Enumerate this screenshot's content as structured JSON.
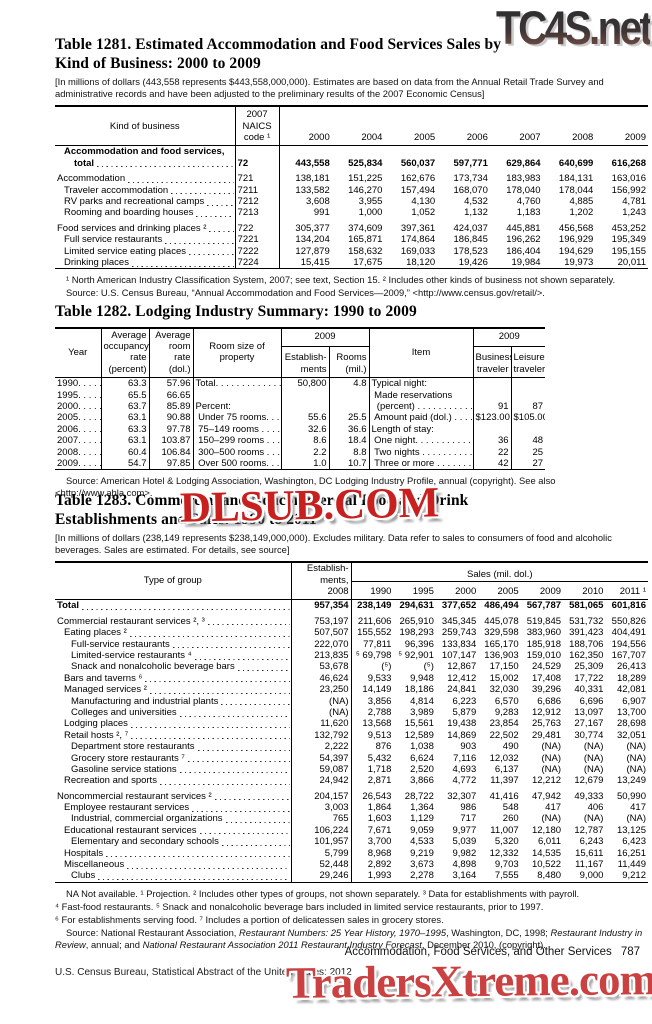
{
  "watermarks": {
    "top": "TC4S.net",
    "middle": "DLSUB.COM",
    "bottom": "TradersXtreme.com"
  },
  "footer": {
    "running_head": "Accommodation, Food Services, and Other Services",
    "page_number": "787",
    "credit": "U.S. Census Bureau, Statistical Abstract of the United States: 2012"
  },
  "t1281": {
    "title1": "Table 1281. Estimated Accommodation and Food Services Sales by",
    "title2": "Kind of Business: 2000 to 2009",
    "note": "[In millions of dollars (443,558 represents $443,558,000,000). Estimates are based on data from the Annual Retail Trade Survey and administrative records and have been adjusted to the preliminary results of the 2007 Economic Census]",
    "header": {
      "kind": "Kind of business",
      "naics": "2007\nNAICS\ncode ¹",
      "years": [
        "2000",
        "2004",
        "2005",
        "2006",
        "2007",
        "2008",
        "2009"
      ]
    },
    "rows": [
      {
        "label": "Accommodation and food services,",
        "label2": "total",
        "naics": "72",
        "bold": true,
        "indent": 1,
        "values": [
          "443,558",
          "525,834",
          "560,037",
          "597,771",
          "629,864",
          "640,699",
          "616,268"
        ]
      },
      {
        "label": "Accommodation",
        "naics": "721",
        "indent": 0,
        "gap": true,
        "values": [
          "138,181",
          "151,225",
          "162,676",
          "173,734",
          "183,983",
          "184,131",
          "163,016"
        ]
      },
      {
        "label": "Traveler accommodation",
        "naics": "7211",
        "indent": 1,
        "values": [
          "133,582",
          "146,270",
          "157,494",
          "168,070",
          "178,040",
          "178,044",
          "156,992"
        ]
      },
      {
        "label": "RV parks and recreational camps",
        "naics": "7212",
        "indent": 1,
        "values": [
          "3,608",
          "3,955",
          "4,130",
          "4,532",
          "4,760",
          "4,885",
          "4,781"
        ]
      },
      {
        "label": "Rooming and boarding houses",
        "naics": "7213",
        "indent": 1,
        "values": [
          "991",
          "1,000",
          "1,052",
          "1,132",
          "1,183",
          "1,202",
          "1,243"
        ]
      },
      {
        "label": "Food services and drinking places ²",
        "naics": "722",
        "indent": 0,
        "gap": true,
        "values": [
          "305,377",
          "374,609",
          "397,361",
          "424,037",
          "445,881",
          "456,568",
          "453,252"
        ]
      },
      {
        "label": "Full service restaurants",
        "naics": "7221",
        "indent": 1,
        "values": [
          "134,204",
          "165,871",
          "174,864",
          "186,845",
          "196,262",
          "196,929",
          "195,349"
        ]
      },
      {
        "label": "Limited service eating places",
        "naics": "7222",
        "indent": 1,
        "values": [
          "127,879",
          "158,632",
          "169,033",
          "178,523",
          "186,404",
          "194,629",
          "195,155"
        ]
      },
      {
        "label": "Drinking places",
        "naics": "7224",
        "indent": 1,
        "values": [
          "15,415",
          "17,675",
          "18,120",
          "19,426",
          "19,984",
          "19,973",
          "20,011"
        ]
      }
    ],
    "footnote": "¹ North American Industry Classification System, 2007; see text, Section 15. ² Includes other kinds of business not shown separately.",
    "source": "Source: U.S. Census Bureau, “Annual Accommodation and Food Services—2009,” <http://www.census.gov/retail/>."
  },
  "t1282": {
    "title": "Table 1282. Lodging Industry Summary: 1990 to 2009",
    "header": {
      "year": "Year",
      "occupancy": "Average\noccupancy\nrate\n(percent)",
      "rate": "Average\nroom rate\n(dol.)",
      "size": "Room size of\nproperty",
      "span_left": "2009",
      "estab": "Establish-\nments",
      "rooms": "Rooms\n(mil.)",
      "item": "Item",
      "span_right": "2009",
      "business": "Business\ntraveler",
      "leisure": "Leisure\ntraveler"
    },
    "rows": [
      [
        "1990. . . . .",
        "63.3",
        "57.96",
        "Total. . . . . . . . . . . . . .",
        "50,800",
        "4.8",
        "Typical night:",
        "",
        ""
      ],
      [
        "1995. . . . .",
        "65.5",
        "66.65",
        "",
        "",
        "",
        " Made reservations",
        "",
        ""
      ],
      [
        "2000. . . . .",
        "63.7",
        "85.89",
        "Percent:",
        "",
        "",
        "  (percent) . . . . . . . . . . .",
        "91",
        "87"
      ],
      [
        "2005. . . . .",
        "63.1",
        "90.88",
        " Under 75 rooms. . .",
        "55.6",
        "25.5",
        " Amount paid (dol.) . . . . .",
        "$123.00",
        "$105.00"
      ],
      [
        "2006. . . . .",
        "63.3",
        "97.78",
        " 75–149 rooms . . . .",
        "32.6",
        "36.6",
        "Length of stay:",
        "",
        ""
      ],
      [
        "2007. . . . .",
        "63.1",
        "103.87",
        " 150–299 rooms . . .",
        "8.6",
        "18.4",
        " One night. . . . . . . . . . .",
        "36",
        "48"
      ],
      [
        "2008. . . . .",
        "60.4",
        "106.84",
        " 300–500 rooms . . .",
        "2.2",
        "8.8",
        " Two nights . . . . . . . . . .",
        "22",
        "25"
      ],
      [
        "2009. . . . .",
        "54.7",
        "97.85",
        " Over 500 rooms. . .",
        "1.0",
        "10.7",
        " Three or more . . . . . . . .",
        "42",
        "27"
      ]
    ],
    "source": "Source: American Hotel & Lodging Association, Washington, DC Lodging Industry Profile, annual (copyright). See also <http://www.ahla.com>."
  },
  "t1283": {
    "title1": "Table 1283. Commercial and Noncommercial Food and Drink",
    "title2": "Establishments and Sales: 1990 to 2011",
    "note": "[In millions of dollars (238,149 represents $238,149,000,000). Excludes military. Data refer to sales to consumers of food and alcoholic beverages. Sales are estimated. For details, see source]",
    "header": {
      "type": "Type of group",
      "estab": "Establish-\nments,\n2008",
      "sales_span": "Sales (mil. dol.)",
      "years": [
        "1990",
        "1995",
        "2000",
        "2005",
        "2009",
        "2010",
        "2011 ¹"
      ]
    },
    "rows": [
      {
        "label": "Total",
        "estab": "957,354",
        "bold": true,
        "indent": 0,
        "values": [
          "238,149",
          "294,631",
          "377,652",
          "486,494",
          "567,787",
          "581,065",
          "601,816"
        ]
      },
      {
        "label": "Commercial restaurant services ², ³",
        "estab": "753,197",
        "indent": 0,
        "gap": true,
        "values": [
          "211,606",
          "265,910",
          "345,345",
          "445,078",
          "519,845",
          "531,732",
          "550,826"
        ]
      },
      {
        "label": "Eating places ²",
        "estab": "507,507",
        "indent": 1,
        "values": [
          "155,552",
          "198,293",
          "259,743",
          "329,598",
          "383,960",
          "391,423",
          "404,491"
        ]
      },
      {
        "label": "Full-service restaurants",
        "estab": "222,070",
        "indent": 2,
        "values": [
          "77,811",
          "96,396",
          "133,834",
          "165,170",
          "185,918",
          "188,706",
          "194,556"
        ]
      },
      {
        "label": "Limited-service restaurants ⁴",
        "estab": "213,835",
        "indent": 2,
        "values": [
          "⁵ 69,798",
          "⁵ 92,901",
          "107,147",
          "136,903",
          "159,010",
          "162,350",
          "167,707"
        ]
      },
      {
        "label": "Snack and nonalcoholic beverage bars",
        "estab": "53,678",
        "indent": 2,
        "values": [
          "(⁵)",
          "(⁵)",
          "12,867",
          "17,150",
          "24,529",
          "25,309",
          "26,413"
        ]
      },
      {
        "label": "Bars and taverns ⁶",
        "estab": "46,624",
        "indent": 1,
        "values": [
          "9,533",
          "9,948",
          "12,412",
          "15,002",
          "17,408",
          "17,722",
          "18,289"
        ]
      },
      {
        "label": "Managed services ²",
        "estab": "23,250",
        "indent": 1,
        "values": [
          "14,149",
          "18,186",
          "24,841",
          "32,030",
          "39,296",
          "40,331",
          "42,081"
        ]
      },
      {
        "label": "Manufacturing and industrial plants",
        "estab": "(NA)",
        "indent": 2,
        "values": [
          "3,856",
          "4,814",
          "6,223",
          "6,570",
          "6,686",
          "6,696",
          "6,907"
        ]
      },
      {
        "label": "Colleges and universities",
        "estab": "(NA)",
        "indent": 2,
        "values": [
          "2,788",
          "3,989",
          "5,879",
          "9,283",
          "12,912",
          "13,097",
          "13,700"
        ]
      },
      {
        "label": "Lodging places",
        "estab": "11,620",
        "indent": 1,
        "values": [
          "13,568",
          "15,561",
          "19,438",
          "23,854",
          "25,763",
          "27,167",
          "28,698"
        ]
      },
      {
        "label": "Retail hosts ², ⁷",
        "estab": "132,792",
        "indent": 1,
        "values": [
          "9,513",
          "12,589",
          "14,869",
          "22,502",
          "29,481",
          "30,774",
          "32,051"
        ]
      },
      {
        "label": "Department store restaurants",
        "estab": "2,222",
        "indent": 2,
        "values": [
          "876",
          "1,038",
          "903",
          "490",
          "(NA)",
          "(NA)",
          "(NA)"
        ]
      },
      {
        "label": "Grocery store restaurants ⁷",
        "estab": "54,397",
        "indent": 2,
        "values": [
          "5,432",
          "6,624",
          "7,116",
          "12,032",
          "(NA)",
          "(NA)",
          "(NA)"
        ]
      },
      {
        "label": "Gasoline service stations",
        "estab": "59,087",
        "indent": 2,
        "values": [
          "1,718",
          "2,520",
          "4,693",
          "6,137",
          "(NA)",
          "(NA)",
          "(NA)"
        ]
      },
      {
        "label": "Recreation and sports",
        "estab": "24,942",
        "indent": 1,
        "values": [
          "2,871",
          "3,866",
          "4,772",
          "11,397",
          "12,212",
          "12,679",
          "13,249"
        ]
      },
      {
        "label": "Noncommercial restaurant services ²",
        "estab": "204,157",
        "indent": 0,
        "gap": true,
        "values": [
          "26,543",
          "28,722",
          "32,307",
          "41,416",
          "47,942",
          "49,333",
          "50,990"
        ]
      },
      {
        "label": "Employee restaurant services",
        "estab": "3,003",
        "indent": 1,
        "values": [
          "1,864",
          "1,364",
          "986",
          "548",
          "417",
          "406",
          "417"
        ]
      },
      {
        "label": "Industrial, commercial organizations",
        "estab": "765",
        "indent": 2,
        "values": [
          "1,603",
          "1,129",
          "717",
          "260",
          "(NA)",
          "(NA)",
          "(NA)"
        ]
      },
      {
        "label": "Educational restaurant services",
        "estab": "106,224",
        "indent": 1,
        "values": [
          "7,671",
          "9,059",
          "9,977",
          "11,007",
          "12,180",
          "12,787",
          "13,125"
        ]
      },
      {
        "label": "Elementary and secondary schools",
        "estab": "101,957",
        "indent": 2,
        "values": [
          "3,700",
          "4,533",
          "5,039",
          "5,320",
          "6,011",
          "6,243",
          "6,423"
        ]
      },
      {
        "label": "Hospitals",
        "estab": "5,799",
        "indent": 1,
        "values": [
          "8,968",
          "9,219",
          "9,982",
          "12,332",
          "14,535",
          "15,611",
          "16,251"
        ]
      },
      {
        "label": "Miscellaneous",
        "estab": "52,448",
        "indent": 1,
        "values": [
          "2,892",
          "3,673",
          "4,898",
          "9,703",
          "10,522",
          "11,167",
          "11,449"
        ]
      },
      {
        "label": "Clubs",
        "estab": "29,246",
        "indent": 2,
        "values": [
          "1,993",
          "2,278",
          "3,164",
          "7,555",
          "8,480",
          "9,000",
          "9,212"
        ]
      }
    ],
    "footnotes": [
      "NA Not available. ¹ Projection. ² Includes other types of groups, not shown separately. ³ Data for establishments with payroll.",
      "⁴ Fast-food restaurants. ⁵ Snack and nonalcoholic beverage bars included in limited service restaurants, prior to 1997.",
      "⁶ For establishments serving food. ⁷ Includes a portion of delicatessen sales in grocery stores."
    ],
    "source_segments": [
      {
        "t": "Source: National Restaurant Association, "
      },
      {
        "t": "Restaurant Numbers: 25 Year History, 1970–1995",
        "i": true
      },
      {
        "t": ", Washington, DC, 1998; "
      },
      {
        "t": "Restaurant Industry in Review",
        "i": true
      },
      {
        "t": ", annual; and "
      },
      {
        "t": "National Restaurant Association 2011 Restaurant Industry Forecast",
        "i": true
      },
      {
        "t": ", December 2010, (copyright)."
      }
    ]
  }
}
